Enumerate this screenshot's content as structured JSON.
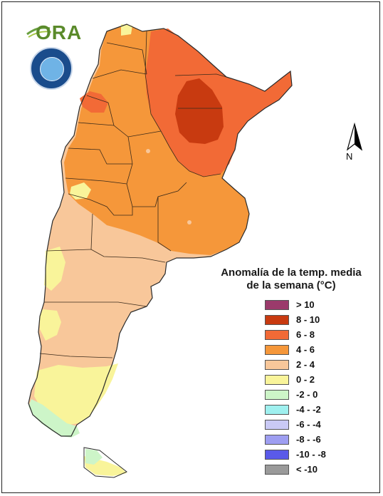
{
  "brand": {
    "ora_text": "ORA"
  },
  "north_arrow": {
    "label": "N"
  },
  "legend": {
    "title_line1": "Anomalía de la temp. media",
    "title_line2": "de la semana (°C)",
    "items": [
      {
        "label": "> 10",
        "color": "#9b3a6b"
      },
      {
        "label": "8 - 10",
        "color": "#c83a10"
      },
      {
        "label": "6 - 8",
        "color": "#f26a36"
      },
      {
        "label": "4 - 6",
        "color": "#f5973a"
      },
      {
        "label": "2 - 4",
        "color": "#f8c79a"
      },
      {
        "label": "0 - 2",
        "color": "#f9f49a"
      },
      {
        "label": "-2 - 0",
        "color": "#cdf5c8"
      },
      {
        "label": "-4 - -2",
        "color": "#9ff0ef"
      },
      {
        "label": "-6 - -4",
        "color": "#c9c9f5"
      },
      {
        "label": "-8 - -6",
        "color": "#9e9ef1"
      },
      {
        "label": "-10 - -8",
        "color": "#5a5ae8"
      },
      {
        "label": "< -10",
        "color": "#9a9a9a"
      }
    ]
  },
  "map_regions": {
    "colors": {
      "strong_hot": "#c83a10",
      "hot": "#f26a36",
      "warm": "#f5973a",
      "mild": "#f8c79a",
      "cool": "#f9f49a",
      "cold": "#cdf5c8"
    }
  }
}
